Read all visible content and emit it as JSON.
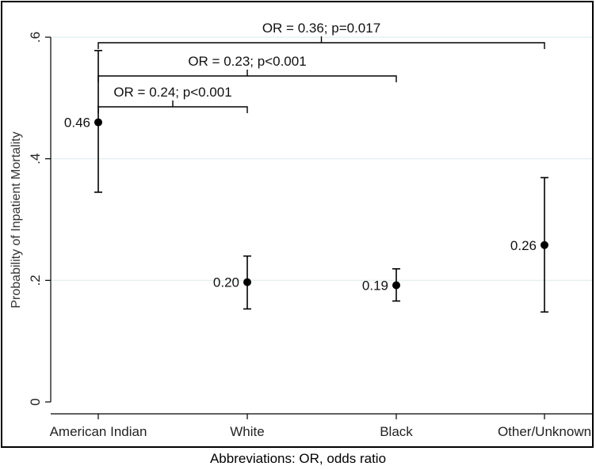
{
  "chart_data": {
    "type": "scatter",
    "ylabel": "Probability of Inpatient Mortality",
    "xlabel": "",
    "ylim": [
      0,
      0.6
    ],
    "yticks": [
      {
        "value": 0,
        "label": "0"
      },
      {
        "value": 0.2,
        "label": ".2"
      },
      {
        "value": 0.4,
        "label": ".4"
      },
      {
        "value": 0.6,
        "label": ".6"
      }
    ],
    "grid": "horizontal",
    "categories": [
      "American Indian",
      "White",
      "Black",
      "Other/Unknown"
    ],
    "points": [
      {
        "category": "American Indian",
        "value": 0.46,
        "low": 0.345,
        "high": 0.578,
        "label": "0.46"
      },
      {
        "category": "White",
        "value": 0.197,
        "low": 0.153,
        "high": 0.24,
        "label": "0.20"
      },
      {
        "category": "Black",
        "value": 0.192,
        "low": 0.166,
        "high": 0.219,
        "label": "0.19"
      },
      {
        "category": "Other/Unknown",
        "value": 0.258,
        "low": 0.148,
        "high": 0.369,
        "label": "0.26"
      }
    ],
    "annotations": [
      {
        "from": "American Indian",
        "to": "Other/Unknown",
        "text": "OR = 0.36; p=0.017"
      },
      {
        "from": "American Indian",
        "to": "Black",
        "text": "OR = 0.23; p<0.001"
      },
      {
        "from": "American Indian",
        "to": "White",
        "text": "OR = 0.24; p<0.001"
      }
    ],
    "colors": {
      "marker": "#000000",
      "errorbar": "#000000",
      "grid": "#dfeeee",
      "axis": "#000000"
    }
  },
  "caption": "Abbreviations: OR, odds ratio"
}
